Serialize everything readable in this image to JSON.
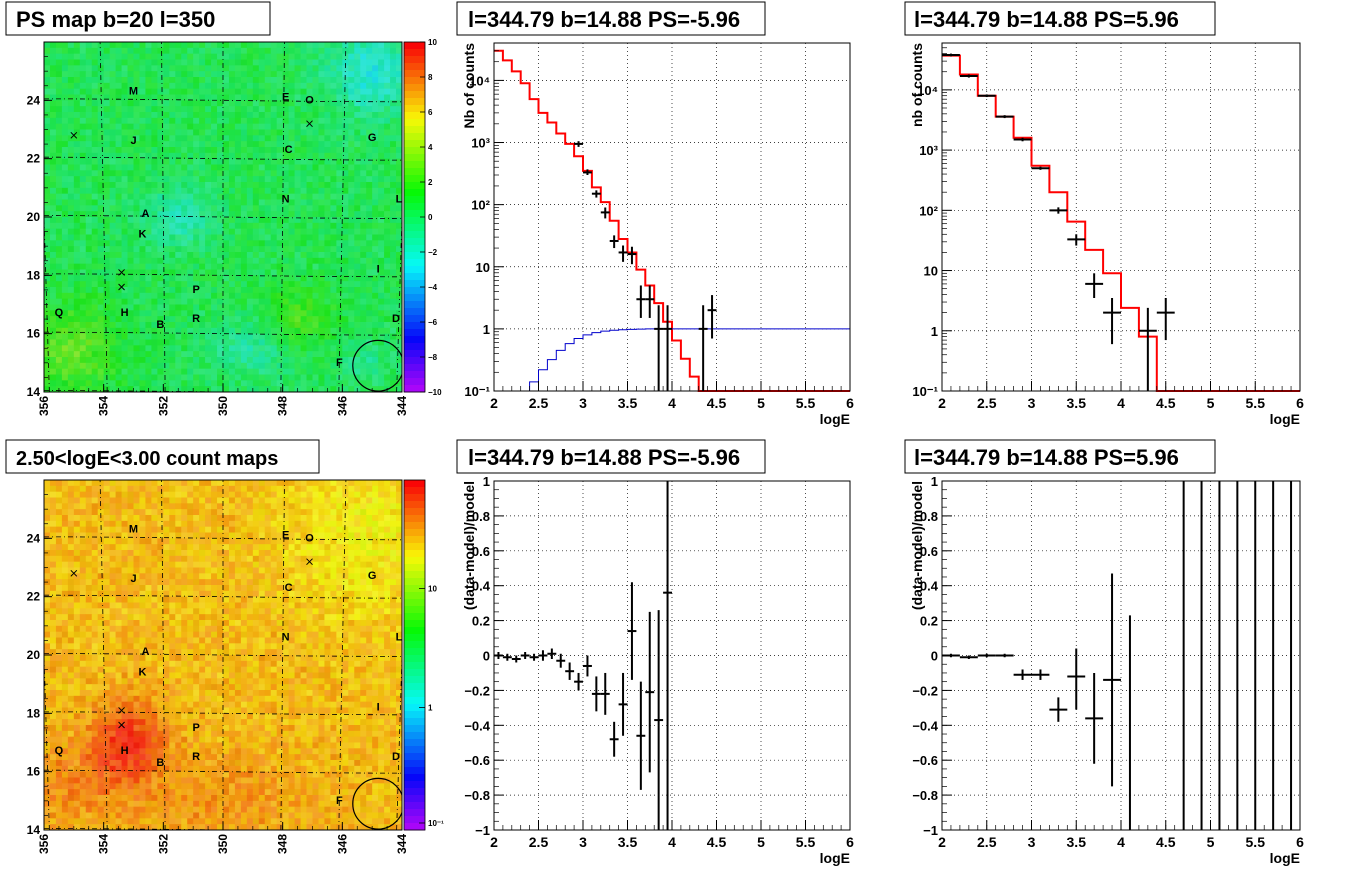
{
  "panels": {
    "map_top": {
      "title": "PS map b=20 l=350",
      "x_ticks": [
        "356",
        "354",
        "352",
        "350",
        "348",
        "346",
        "344"
      ],
      "y_ticks": [
        "14",
        "16",
        "18",
        "20",
        "22",
        "24"
      ],
      "colorbar_ticks": [
        "10",
        "8",
        "6",
        "4",
        "2",
        "0",
        "−2",
        "−4",
        "−6",
        "−8",
        "−10"
      ]
    },
    "map_bottom": {
      "title": "2.50<logE<3.00 count maps",
      "x_ticks": [
        "356",
        "354",
        "352",
        "350",
        "348",
        "346",
        "344"
      ],
      "y_ticks": [
        "14",
        "16",
        "18",
        "20",
        "22",
        "24"
      ],
      "colorbar_ticks": [
        "10",
        "1",
        "10⁻¹"
      ]
    },
    "spec_left": {
      "title": "l=344.79 b=14.88 PS=-5.96"
    },
    "spec_right": {
      "title": "l=344.79 b=14.88 PS=5.96"
    },
    "res_left": {
      "title": "l=344.79 b=14.88 PS=-5.96"
    },
    "res_right": {
      "title": "l=344.79 b=14.88 PS=5.96"
    }
  },
  "source_labels": [
    {
      "text": "M",
      "l": 353.0,
      "b": 24.2
    },
    {
      "text": "E",
      "l": 347.9,
      "b": 24.0
    },
    {
      "text": "O",
      "l": 347.1,
      "b": 23.9
    },
    {
      "text": "J",
      "l": 353.0,
      "b": 22.5
    },
    {
      "text": "C",
      "l": 347.8,
      "b": 22.2
    },
    {
      "text": "G",
      "l": 345.0,
      "b": 22.6
    },
    {
      "text": "N",
      "l": 347.9,
      "b": 20.5
    },
    {
      "text": "L",
      "l": 344.1,
      "b": 20.5
    },
    {
      "text": "A",
      "l": 352.6,
      "b": 20.0
    },
    {
      "text": "K",
      "l": 352.7,
      "b": 19.3
    },
    {
      "text": "I",
      "l": 344.8,
      "b": 18.1
    },
    {
      "text": "P",
      "l": 350.9,
      "b": 17.4
    },
    {
      "text": "Q",
      "l": 355.5,
      "b": 16.6
    },
    {
      "text": "H",
      "l": 353.3,
      "b": 16.6
    },
    {
      "text": "B",
      "l": 352.1,
      "b": 16.2
    },
    {
      "text": "R",
      "l": 350.9,
      "b": 16.4
    },
    {
      "text": "D",
      "l": 344.2,
      "b": 16.4
    },
    {
      "text": "F",
      "l": 346.1,
      "b": 14.9
    }
  ],
  "cross_markers": [
    {
      "l": 355.0,
      "b": 22.8
    },
    {
      "l": 347.1,
      "b": 23.2
    },
    {
      "l": 353.4,
      "b": 18.1
    },
    {
      "l": 353.4,
      "b": 17.6
    }
  ],
  "circle_marker": {
    "l": 344.8,
    "b": 14.9,
    "r": 0.85
  },
  "chart_data": [
    {
      "type": "line",
      "panel": "spec_left",
      "xlabel": "logE",
      "ylabel": "Nb of counts",
      "xlim": [
        2,
        6
      ],
      "ylim": [
        0.1,
        40000
      ],
      "yscale": "log",
      "grid": true,
      "x_ticks": [
        2,
        2.5,
        3,
        3.5,
        4,
        4.5,
        5,
        5.5,
        6
      ],
      "y_ticks": [
        {
          "v": 0.1,
          "label": "10⁻¹"
        },
        {
          "v": 1,
          "label": "1"
        },
        {
          "v": 10,
          "label": "10"
        },
        {
          "v": 100,
          "label": "10²"
        },
        {
          "v": 1000,
          "label": "10³"
        },
        {
          "v": 10000,
          "label": "10⁴"
        }
      ],
      "series": [
        {
          "role": "model",
          "color": "#ff0000",
          "bin_width": 0.1,
          "x": [
            2.0,
            2.1,
            2.2,
            2.3,
            2.4,
            2.5,
            2.6,
            2.7,
            2.8,
            2.9,
            3.0,
            3.1,
            3.2,
            3.3,
            3.4,
            3.5,
            3.6,
            3.7,
            3.8,
            3.9,
            4.0,
            4.1,
            4.2,
            4.3,
            4.4,
            4.5,
            4.6,
            4.7,
            4.8,
            4.9,
            5.0,
            5.1,
            5.2,
            5.3,
            5.4,
            5.5,
            5.6,
            5.7,
            5.8,
            5.9
          ],
          "y": [
            30000,
            21000,
            14000,
            9000,
            5000,
            3000,
            2100,
            1400,
            950,
            600,
            350,
            190,
            110,
            55,
            28,
            17,
            9,
            5,
            2.6,
            1.3,
            0.65,
            0.33,
            0.17,
            0.1,
            0.1,
            0.1,
            0.1,
            0.1,
            0.1,
            0.1,
            0.1,
            0.1,
            0.1,
            0.1,
            0.1,
            0.1,
            0.1,
            0.1,
            0.1,
            0.1
          ]
        },
        {
          "role": "background",
          "color": "#0000cc",
          "bin_width": 0.1,
          "x": [
            2.0,
            2.1,
            2.2,
            2.3,
            2.4,
            2.5,
            2.6,
            2.7,
            2.8,
            2.9,
            3.0,
            3.1,
            3.2,
            3.3,
            3.4,
            3.5,
            3.6,
            3.7,
            3.8,
            3.9,
            4.0,
            4.1,
            4.2,
            4.3,
            4.4,
            4.5,
            4.6,
            4.7,
            4.8,
            4.9,
            5.0,
            5.1,
            5.2,
            5.3,
            5.4,
            5.5,
            5.6,
            5.7,
            5.8,
            5.9
          ],
          "y": [
            0.1,
            0.1,
            0.1,
            0.1,
            0.14,
            0.22,
            0.32,
            0.45,
            0.58,
            0.7,
            0.8,
            0.87,
            0.92,
            0.95,
            0.97,
            0.98,
            0.99,
            1.0,
            1.0,
            1.0,
            1.0,
            1.0,
            1.0,
            1.0,
            1.0,
            1.0,
            1.0,
            1.0,
            1.0,
            1.0,
            1.0,
            1.0,
            1.0,
            1.0,
            1.0,
            1.0,
            1.0,
            1.0,
            1.0,
            1.0
          ]
        },
        {
          "role": "data",
          "color": "#000000",
          "xerr": 0.05,
          "x": [
            2.95,
            3.05,
            3.15,
            3.25,
            3.35,
            3.45,
            3.55,
            3.65,
            3.75,
            3.85,
            3.95,
            4.35,
            4.45
          ],
          "y": [
            950,
            330,
            150,
            75,
            26,
            17,
            16,
            3,
            3,
            1,
            1,
            1,
            2
          ],
          "ylo": [
            850,
            300,
            130,
            60,
            20,
            12,
            11,
            1.5,
            1.5,
            0.1,
            0.1,
            0.1,
            0.7
          ],
          "yhi": [
            1050,
            370,
            170,
            90,
            32,
            22,
            21,
            5,
            5,
            2.4,
            2.4,
            2.4,
            3.5
          ]
        }
      ]
    },
    {
      "type": "line",
      "panel": "spec_right",
      "xlabel": "logE",
      "ylabel": "nb of counts",
      "xlim": [
        2,
        6
      ],
      "ylim": [
        0.1,
        60000
      ],
      "yscale": "log",
      "grid": true,
      "x_ticks": [
        2,
        2.5,
        3,
        3.5,
        4,
        4.5,
        5,
        5.5,
        6
      ],
      "y_ticks": [
        {
          "v": 0.1,
          "label": "10⁻¹"
        },
        {
          "v": 1,
          "label": "1"
        },
        {
          "v": 10,
          "label": "10"
        },
        {
          "v": 100,
          "label": "10²"
        },
        {
          "v": 1000,
          "label": "10³"
        },
        {
          "v": 10000,
          "label": "10⁴"
        }
      ],
      "series": [
        {
          "role": "model",
          "color": "#ff0000",
          "bin_width": 0.2,
          "x": [
            2.0,
            2.2,
            2.4,
            2.6,
            2.8,
            3.0,
            3.2,
            3.4,
            3.6,
            3.8,
            4.0,
            4.2,
            4.4,
            4.6,
            4.8,
            5.0,
            5.2,
            5.4,
            5.6,
            5.8
          ],
          "y": [
            37000,
            18000,
            8000,
            3600,
            1600,
            550,
            200,
            65,
            22,
            9,
            2.4,
            0.8,
            0.1,
            0.1,
            0.1,
            0.1,
            0.1,
            0.1,
            0.1,
            0.1
          ]
        },
        {
          "role": "data",
          "color": "#000000",
          "xerr": 0.1,
          "x": [
            2.1,
            2.3,
            2.5,
            2.7,
            2.9,
            3.1,
            3.3,
            3.5,
            3.7,
            3.9,
            4.3,
            4.5
          ],
          "y": [
            38000,
            17000,
            8000,
            3600,
            1500,
            500,
            100,
            33,
            6,
            2,
            1,
            2
          ],
          "ylo": [
            36000,
            16000,
            7600,
            3400,
            1400,
            470,
            88,
            26,
            3.5,
            0.6,
            0.1,
            0.7
          ],
          "yhi": [
            40000,
            18000,
            8400,
            3800,
            1600,
            530,
            112,
            40,
            9,
            3.5,
            2.4,
            3.5
          ]
        }
      ]
    },
    {
      "type": "scatter",
      "panel": "res_left",
      "xlabel": "logE",
      "ylabel": "(data-model)/model",
      "xlim": [
        2,
        6
      ],
      "ylim": [
        -1,
        1
      ],
      "grid": true,
      "x_ticks": [
        2,
        2.5,
        3,
        3.5,
        4,
        4.5,
        5,
        5.5,
        6
      ],
      "y_ticks": [
        {
          "v": -1,
          "label": "−1"
        },
        {
          "v": -0.8,
          "label": "−0.8"
        },
        {
          "v": -0.6,
          "label": "−0.6"
        },
        {
          "v": -0.4,
          "label": "−0.4"
        },
        {
          "v": -0.2,
          "label": "−0.2"
        },
        {
          "v": 0,
          "label": "0"
        },
        {
          "v": 0.2,
          "label": "0.2"
        },
        {
          "v": 0.4,
          "label": "0.4"
        },
        {
          "v": 0.6,
          "label": "0.6"
        },
        {
          "v": 0.8,
          "label": "0.8"
        },
        {
          "v": 1,
          "label": "1"
        }
      ],
      "series": [
        {
          "role": "data",
          "color": "#000000",
          "xerr": 0.05,
          "x": [
            2.05,
            2.15,
            2.25,
            2.35,
            2.45,
            2.55,
            2.65,
            2.75,
            2.85,
            2.95,
            3.05,
            3.15,
            3.25,
            3.35,
            3.45,
            3.55,
            3.65,
            3.75,
            3.85,
            3.95
          ],
          "y": [
            0.0,
            -0.01,
            -0.02,
            0.0,
            -0.01,
            0.0,
            0.01,
            -0.03,
            -0.09,
            -0.15,
            -0.06,
            -0.22,
            -0.22,
            -0.48,
            -0.28,
            0.14,
            -0.46,
            -0.21,
            -0.37,
            0.36
          ],
          "ylo": [
            -0.02,
            -0.03,
            -0.04,
            -0.02,
            -0.03,
            -0.03,
            -0.02,
            -0.07,
            -0.14,
            -0.2,
            -0.12,
            -0.32,
            -0.34,
            -0.58,
            -0.46,
            -0.14,
            -0.77,
            -0.67,
            -1.0,
            -1.0
          ],
          "yhi": [
            0.02,
            0.01,
            0.0,
            0.02,
            0.01,
            0.03,
            0.04,
            0.01,
            -0.04,
            -0.1,
            0.0,
            -0.12,
            -0.1,
            -0.38,
            -0.1,
            0.42,
            -0.15,
            0.25,
            0.26,
            1.0
          ]
        }
      ]
    },
    {
      "type": "scatter",
      "panel": "res_right",
      "xlabel": "logE",
      "ylabel": "(data-model)/model",
      "xlim": [
        2,
        6
      ],
      "ylim": [
        -1,
        1
      ],
      "grid": true,
      "x_ticks": [
        2,
        2.5,
        3,
        3.5,
        4,
        4.5,
        5,
        5.5,
        6
      ],
      "y_ticks": [
        {
          "v": -1,
          "label": "−1"
        },
        {
          "v": -0.8,
          "label": "−0.8"
        },
        {
          "v": -0.6,
          "label": "−0.6"
        },
        {
          "v": -0.4,
          "label": "−0.4"
        },
        {
          "v": -0.2,
          "label": "−0.2"
        },
        {
          "v": 0,
          "label": "0"
        },
        {
          "v": 0.2,
          "label": "0.2"
        },
        {
          "v": 0.4,
          "label": "0.4"
        },
        {
          "v": 0.6,
          "label": "0.6"
        },
        {
          "v": 0.8,
          "label": "0.8"
        },
        {
          "v": 1,
          "label": "1"
        }
      ],
      "series": [
        {
          "role": "data",
          "color": "#000000",
          "xerr": 0.1,
          "x": [
            2.1,
            2.3,
            2.5,
            2.7,
            2.9,
            3.1,
            3.3,
            3.5,
            3.7,
            3.9,
            4.1,
            4.7,
            4.9,
            5.1,
            5.3,
            5.5,
            5.7,
            5.9
          ],
          "y": [
            0.0,
            -0.01,
            0.0,
            0.0,
            -0.11,
            -0.11,
            -0.31,
            -0.12,
            -0.36,
            -0.14,
            null,
            null,
            null,
            null,
            null,
            null,
            null,
            null
          ],
          "ylo": [
            -0.01,
            -0.02,
            -0.01,
            -0.01,
            -0.14,
            -0.14,
            -0.38,
            -0.31,
            -0.62,
            -0.75,
            -1.0,
            -1.0,
            -1.0,
            -1.0,
            -1.0,
            -1.0,
            -1.0,
            -1.0
          ],
          "yhi": [
            0.01,
            0.0,
            0.01,
            0.01,
            -0.08,
            -0.08,
            -0.24,
            0.04,
            -0.1,
            0.47,
            0.23,
            1.0,
            1.0,
            1.0,
            1.0,
            1.0,
            1.0,
            1.0
          ]
        }
      ]
    }
  ]
}
